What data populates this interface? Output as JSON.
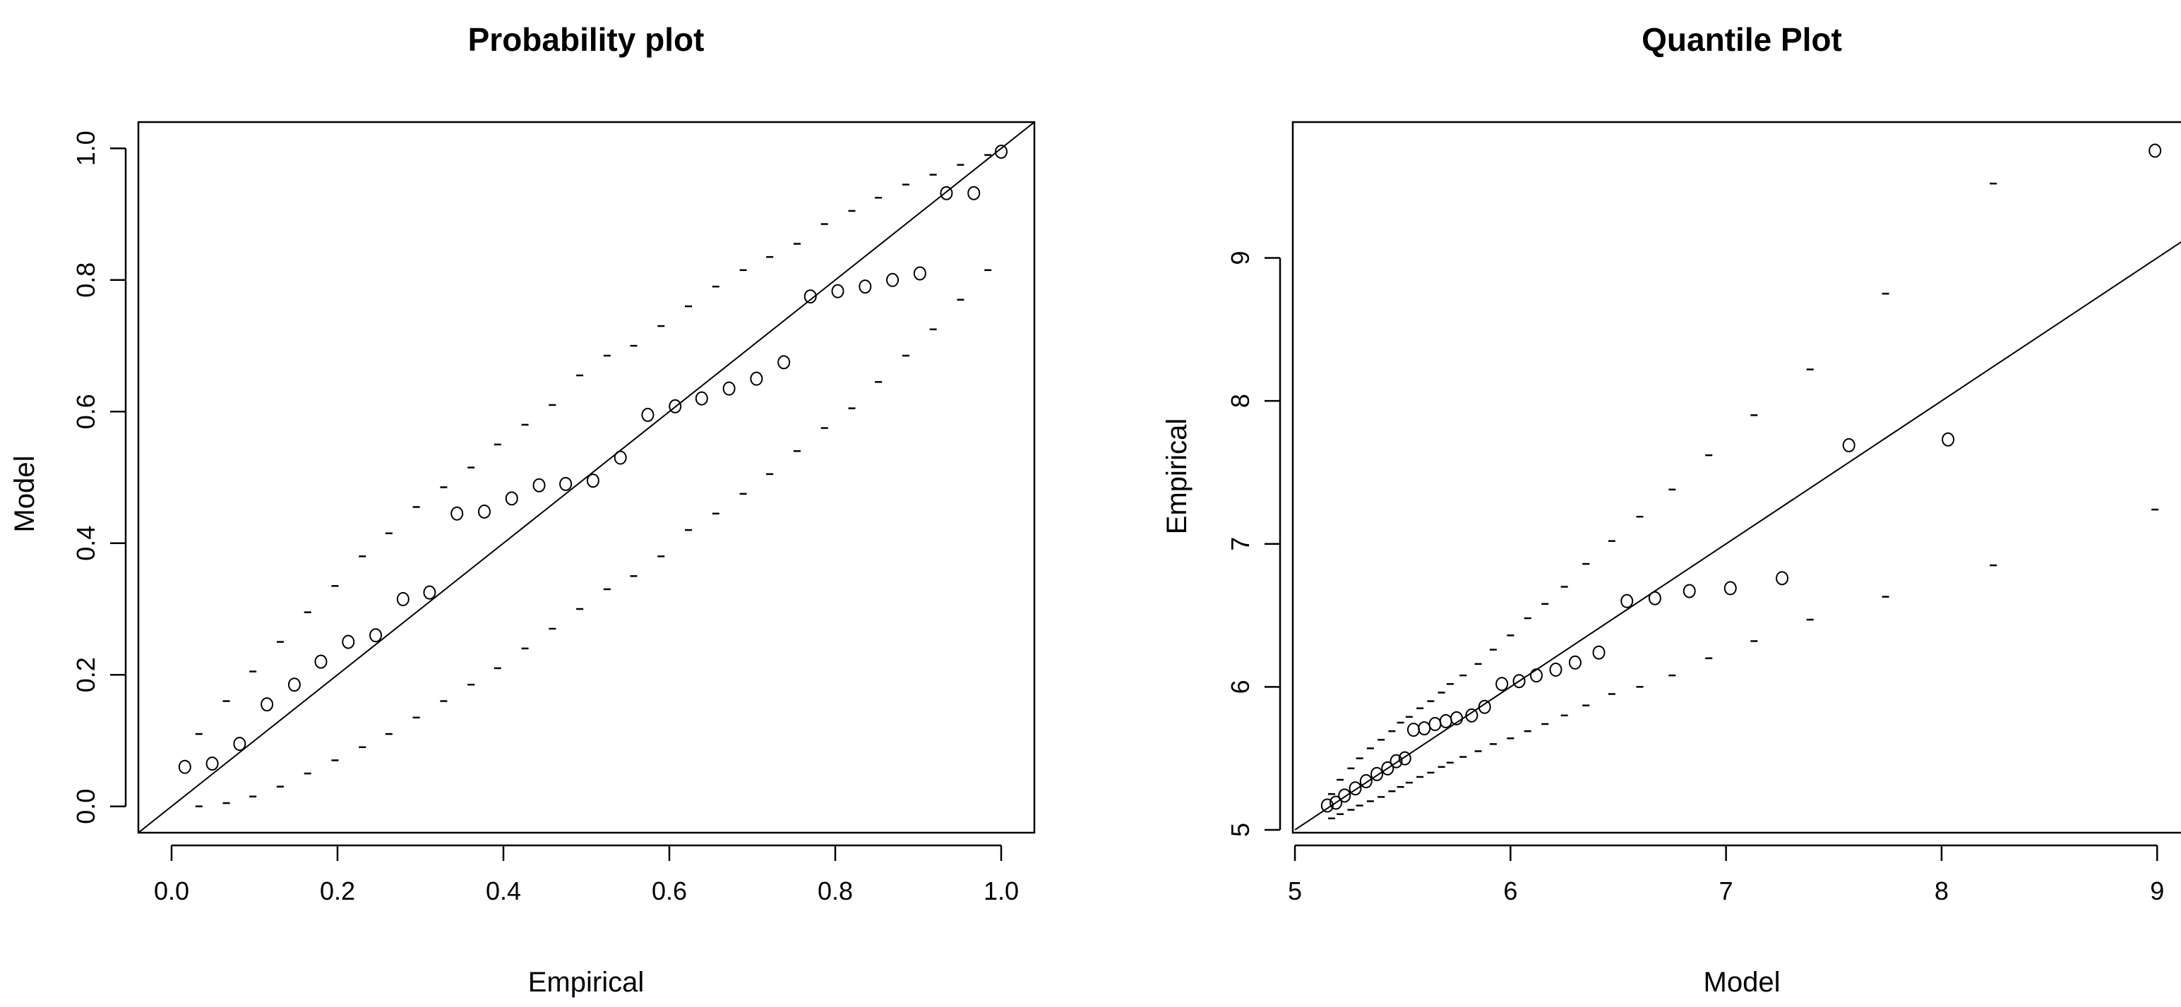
{
  "chart_data": [
    {
      "type": "scatter",
      "title": "Probability plot",
      "xlabel": "Empirical",
      "ylabel": "Model",
      "xlim": [
        -0.04,
        1.04
      ],
      "ylim": [
        -0.04,
        1.04
      ],
      "xticks": [
        0.0,
        0.2,
        0.4,
        0.6,
        0.8,
        1.0
      ],
      "xtick_labels": [
        "0.0",
        "0.2",
        "0.4",
        "0.6",
        "0.8",
        "1.0"
      ],
      "yticks": [
        0.0,
        0.2,
        0.4,
        0.6,
        0.8,
        1.0
      ],
      "ytick_labels": [
        "0.0",
        "0.2",
        "0.4",
        "0.6",
        "0.8",
        "1.0"
      ],
      "reference_line": [
        [
          -0.04,
          -0.04
        ],
        [
          1.04,
          1.04
        ]
      ],
      "points": {
        "x": [
          0.016,
          0.049,
          0.082,
          0.115,
          0.148,
          0.18,
          0.213,
          0.246,
          0.279,
          0.311,
          0.344,
          0.377,
          0.41,
          0.443,
          0.475,
          0.508,
          0.541,
          0.574,
          0.607,
          0.639,
          0.672,
          0.705,
          0.738,
          0.77,
          0.803,
          0.836,
          0.869,
          0.902,
          0.934,
          0.967,
          1.0
        ],
        "y": [
          0.06,
          0.065,
          0.095,
          0.155,
          0.185,
          0.22,
          0.25,
          0.26,
          0.315,
          0.325,
          0.445,
          0.448,
          0.468,
          0.488,
          0.49,
          0.495,
          0.53,
          0.595,
          0.608,
          0.62,
          0.635,
          0.65,
          0.675,
          0.775,
          0.783,
          0.79,
          0.8,
          0.81,
          0.932,
          0.932,
          0.995
        ]
      },
      "upper_band": {
        "x": [
          0.033,
          0.066,
          0.098,
          0.131,
          0.164,
          0.197,
          0.23,
          0.262,
          0.295,
          0.328,
          0.361,
          0.393,
          0.426,
          0.459,
          0.492,
          0.525,
          0.557,
          0.59,
          0.623,
          0.656,
          0.689,
          0.721,
          0.754,
          0.787,
          0.82,
          0.852,
          0.885,
          0.918,
          0.951,
          0.984
        ],
        "y": [
          0.11,
          0.16,
          0.205,
          0.25,
          0.295,
          0.335,
          0.38,
          0.415,
          0.455,
          0.485,
          0.515,
          0.55,
          0.58,
          0.61,
          0.655,
          0.685,
          0.7,
          0.73,
          0.76,
          0.79,
          0.815,
          0.835,
          0.855,
          0.885,
          0.905,
          0.925,
          0.945,
          0.96,
          0.975,
          0.99
        ]
      },
      "lower_band": {
        "x": [
          0.033,
          0.066,
          0.098,
          0.131,
          0.164,
          0.197,
          0.23,
          0.262,
          0.295,
          0.328,
          0.361,
          0.393,
          0.426,
          0.459,
          0.492,
          0.525,
          0.557,
          0.59,
          0.623,
          0.656,
          0.689,
          0.721,
          0.754,
          0.787,
          0.82,
          0.852,
          0.885,
          0.918,
          0.951,
          0.984
        ],
        "y": [
          0.0,
          0.005,
          0.015,
          0.03,
          0.05,
          0.07,
          0.09,
          0.11,
          0.135,
          0.16,
          0.185,
          0.21,
          0.24,
          0.27,
          0.3,
          0.33,
          0.35,
          0.38,
          0.42,
          0.445,
          0.475,
          0.505,
          0.54,
          0.575,
          0.605,
          0.645,
          0.685,
          0.725,
          0.77,
          0.815
        ]
      }
    },
    {
      "type": "scatter",
      "title": "Quantile Plot",
      "xlabel": "Model",
      "ylabel": "Empirical",
      "xlim": [
        4.99,
        9.15
      ],
      "ylim": [
        4.98,
        9.95
      ],
      "xticks": [
        5,
        6,
        7,
        8,
        9
      ],
      "xtick_labels": [
        "5",
        "6",
        "7",
        "8",
        "9"
      ],
      "yticks": [
        5,
        6,
        7,
        8,
        9
      ],
      "ytick_labels": [
        "5",
        "6",
        "7",
        "8",
        "9"
      ],
      "reference_line": [
        [
          5.0,
          5.0
        ],
        [
          9.15,
          9.15
        ]
      ],
      "points": {
        "x": [
          5.15,
          5.19,
          5.23,
          5.28,
          5.33,
          5.38,
          5.43,
          5.47,
          5.51,
          5.55,
          5.6,
          5.65,
          5.7,
          5.75,
          5.82,
          5.88,
          5.96,
          6.04,
          6.12,
          6.21,
          6.3,
          6.41,
          6.54,
          6.67,
          6.83,
          7.02,
          7.26,
          7.57,
          8.03,
          8.99
        ],
        "y": [
          5.17,
          5.19,
          5.24,
          5.29,
          5.34,
          5.39,
          5.43,
          5.48,
          5.5,
          5.7,
          5.71,
          5.74,
          5.76,
          5.78,
          5.8,
          5.86,
          6.02,
          6.04,
          6.08,
          6.12,
          6.17,
          6.24,
          6.6,
          6.62,
          6.67,
          6.69,
          6.76,
          7.69,
          7.73,
          9.75
        ]
      },
      "upper_band": {
        "x": [
          5.17,
          5.21,
          5.26,
          5.3,
          5.35,
          5.4,
          5.45,
          5.49,
          5.53,
          5.58,
          5.63,
          5.68,
          5.72,
          5.78,
          5.85,
          5.92,
          6.0,
          6.08,
          6.16,
          6.25,
          6.35,
          6.47,
          6.6,
          6.75,
          6.92,
          7.13,
          7.39,
          7.74,
          8.24
        ],
        "y": [
          5.25,
          5.35,
          5.43,
          5.5,
          5.57,
          5.63,
          5.69,
          5.75,
          5.79,
          5.85,
          5.9,
          5.96,
          6.02,
          6.08,
          6.16,
          6.26,
          6.36,
          6.48,
          6.58,
          6.7,
          6.86,
          7.02,
          7.19,
          7.38,
          7.62,
          7.9,
          8.22,
          8.75,
          9.52
        ]
      },
      "lower_band": {
        "x": [
          5.17,
          5.21,
          5.26,
          5.3,
          5.35,
          5.4,
          5.45,
          5.49,
          5.53,
          5.58,
          5.63,
          5.68,
          5.72,
          5.78,
          5.85,
          5.92,
          6.0,
          6.08,
          6.16,
          6.25,
          6.35,
          6.47,
          6.6,
          6.75,
          6.92,
          7.13,
          7.39,
          7.74,
          8.24,
          8.99
        ],
        "y": [
          5.08,
          5.11,
          5.14,
          5.17,
          5.2,
          5.23,
          5.27,
          5.3,
          5.33,
          5.37,
          5.4,
          5.44,
          5.47,
          5.51,
          5.55,
          5.6,
          5.64,
          5.69,
          5.74,
          5.8,
          5.87,
          5.95,
          6.0,
          6.08,
          6.2,
          6.32,
          6.47,
          6.63,
          6.85,
          7.24
        ]
      }
    }
  ]
}
